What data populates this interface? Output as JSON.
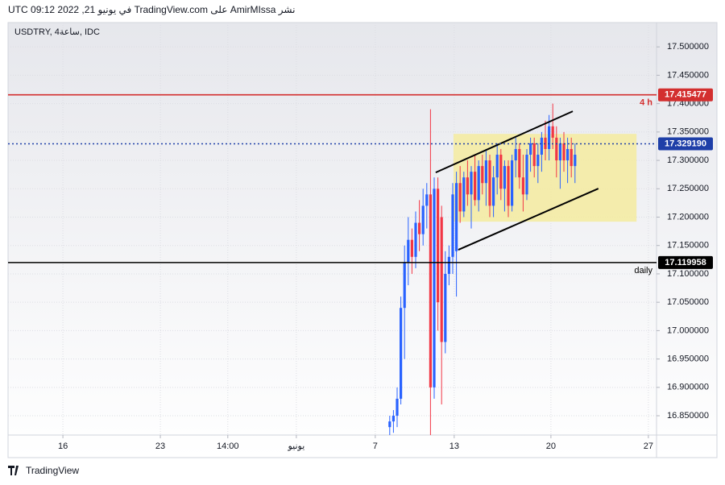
{
  "header": {
    "text": "نشر AmirMIssa على TradingView.com في يونيو 21, 2022 09:12 UTC"
  },
  "footer": {
    "logo": "TradingView"
  },
  "chart_data": {
    "type": "candlestick",
    "title": "USDTRY, 4ساعة, IDC",
    "up_color": "#2962ff",
    "down_color": "#f23645",
    "x": [
      103,
      104,
      105,
      106,
      107,
      108,
      109,
      110,
      111,
      112,
      113,
      114,
      115,
      116,
      117,
      118,
      119,
      120,
      121,
      122,
      123,
      124,
      125,
      126,
      127,
      128,
      129,
      130,
      131,
      132,
      133,
      134,
      135,
      136,
      137,
      138,
      139,
      140,
      141,
      142,
      143,
      144,
      145,
      146,
      147,
      148,
      149,
      150,
      151,
      152,
      153
    ],
    "open": [
      16.83,
      16.84,
      16.85,
      16.88,
      17.04,
      17.12,
      17.16,
      17.13,
      17.19,
      17.17,
      17.22,
      17.24,
      16.9,
      17.25,
      17.2,
      16.98,
      17.1,
      17.13,
      17.14,
      17.26,
      17.21,
      17.27,
      17.24,
      17.28,
      17.23,
      17.29,
      17.26,
      17.3,
      17.22,
      17.27,
      17.31,
      17.25,
      17.29,
      17.22,
      17.3,
      17.32,
      17.27,
      17.24,
      17.31,
      17.33,
      17.29,
      17.31,
      17.34,
      17.32,
      17.36,
      17.34,
      17.3,
      17.33,
      17.3,
      17.32,
      17.29
    ],
    "high": [
      16.85,
      16.86,
      16.9,
      17.06,
      17.15,
      17.2,
      17.18,
      17.21,
      17.23,
      17.25,
      17.26,
      17.39,
      17.27,
      17.27,
      17.22,
      17.14,
      17.15,
      17.26,
      17.28,
      17.29,
      17.28,
      17.3,
      17.29,
      17.31,
      17.3,
      17.31,
      17.32,
      17.31,
      17.29,
      17.33,
      17.32,
      17.3,
      17.3,
      17.31,
      17.34,
      17.33,
      17.31,
      17.32,
      17.34,
      17.34,
      17.33,
      17.35,
      17.37,
      17.38,
      17.4,
      17.36,
      17.34,
      17.35,
      17.34,
      17.34,
      17.33
    ],
    "low": [
      16.816,
      16.82,
      16.83,
      16.87,
      16.95,
      17.08,
      17.1,
      17.11,
      17.14,
      17.15,
      17.18,
      16.816,
      16.88,
      17.0,
      16.87,
      16.96,
      17.08,
      17.1,
      17.06,
      17.19,
      17.2,
      17.22,
      17.18,
      17.22,
      17.21,
      17.24,
      17.22,
      17.2,
      17.2,
      17.24,
      17.23,
      17.21,
      17.2,
      17.21,
      17.27,
      17.25,
      17.21,
      17.23,
      17.28,
      17.27,
      17.26,
      17.28,
      17.3,
      17.3,
      17.32,
      17.27,
      17.25,
      17.28,
      17.26,
      17.27,
      17.26
    ],
    "close": [
      16.84,
      16.85,
      16.88,
      17.04,
      17.12,
      17.16,
      17.13,
      17.19,
      17.17,
      17.22,
      17.24,
      16.9,
      17.25,
      17.05,
      16.98,
      17.1,
      17.13,
      17.24,
      17.26,
      17.21,
      17.27,
      17.24,
      17.28,
      17.23,
      17.29,
      17.26,
      17.3,
      17.22,
      17.27,
      17.31,
      17.25,
      17.29,
      17.22,
      17.3,
      17.32,
      17.27,
      17.24,
      17.31,
      17.33,
      17.29,
      17.31,
      17.34,
      17.32,
      17.36,
      17.34,
      17.3,
      17.33,
      17.3,
      17.32,
      17.29,
      17.31
    ],
    "xlim": [
      0,
      175
    ],
    "xticks": [
      {
        "value": 14.8,
        "label": "16"
      },
      {
        "value": 41.1,
        "label": "23"
      },
      {
        "value": 59.3,
        "label": "14:00"
      },
      {
        "value": 77.8,
        "label": "يونيو"
      },
      {
        "value": 99.1,
        "label": "7"
      },
      {
        "value": 120.4,
        "label": "13"
      },
      {
        "value": 146.5,
        "label": "20"
      },
      {
        "value": 172.8,
        "label": "27"
      }
    ],
    "ylim": [
      16.816,
      17.54
    ],
    "yticks": [
      {
        "value": 16.85,
        "label": "16.850000"
      },
      {
        "value": 16.9,
        "label": "16.900000"
      },
      {
        "value": 16.95,
        "label": "16.950000"
      },
      {
        "value": 17.0,
        "label": "17.000000"
      },
      {
        "value": 17.05,
        "label": "17.050000"
      },
      {
        "value": 17.1,
        "label": "17.100000"
      },
      {
        "value": 17.15,
        "label": "17.150000"
      },
      {
        "value": 17.2,
        "label": "17.200000"
      },
      {
        "value": 17.25,
        "label": "17.250000"
      },
      {
        "value": 17.3,
        "label": "17.300000"
      },
      {
        "value": 17.35,
        "label": "17.350000"
      },
      {
        "value": 17.4,
        "label": "17.400000"
      },
      {
        "value": 17.45,
        "label": "17.450000"
      },
      {
        "value": 17.5,
        "label": "17.500000"
      }
    ],
    "grid": true,
    "price_lines": [
      {
        "value": 17.415477,
        "label": "17.415477",
        "color": "#d32f2f",
        "style": "solid",
        "note": "4 h"
      },
      {
        "value": 17.32919,
        "label": "17.329190",
        "color": "#1e3fa8",
        "style": "dotted"
      },
      {
        "value": 17.119958,
        "label": "17.119958",
        "color": "#000000",
        "style": "solid",
        "note": "daily"
      }
    ],
    "zone": {
      "x": [
        120.2,
        169.6
      ],
      "y": [
        17.192,
        17.3467
      ],
      "color": "#f5eb9a"
    },
    "trend_lines": [
      {
        "x": [
          115.4,
          152.4
        ],
        "y": [
          17.2786,
          17.3865
        ]
      },
      {
        "x": [
          121.5,
          159.3
        ],
        "y": [
          17.1424,
          17.2503
        ]
      }
    ]
  }
}
